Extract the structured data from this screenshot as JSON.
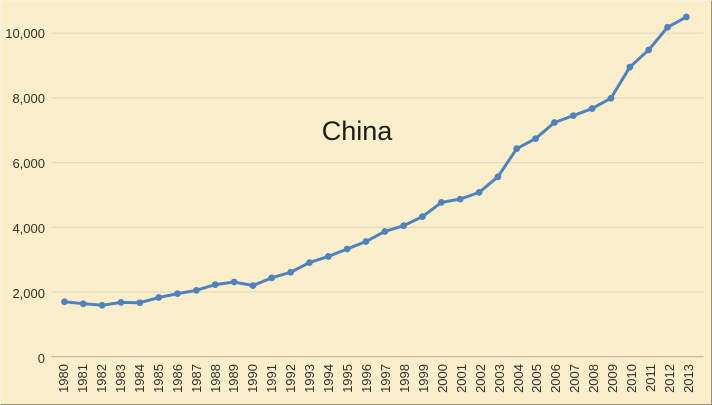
{
  "colors": {
    "background": "#FBEFCB",
    "line": "#4F81BD",
    "marker": "#4F81BD",
    "gridline": "#DBD4C0",
    "axis_line": "#B3AC96",
    "tick_text": "#33302A",
    "title_text": "#1C1C1C",
    "border_light": "#F8F3DF",
    "border_dark": "#97917D"
  },
  "chart_data": {
    "type": "line",
    "title": "China",
    "xlabel": "",
    "ylabel": "",
    "legend": "none",
    "grid": "horizontal",
    "marker_shape": "circle",
    "x": [
      "1980",
      "1981",
      "1982",
      "1983",
      "1984",
      "1985",
      "1986",
      "1987",
      "1988",
      "1989",
      "1990",
      "1991",
      "1992",
      "1993",
      "1994",
      "1995",
      "1996",
      "1997",
      "1998",
      "1999",
      "2000",
      "2001",
      "2002",
      "2003",
      "2004",
      "2005",
      "2006",
      "2007",
      "2008",
      "2009",
      "2010",
      "2011",
      "2012",
      "2013"
    ],
    "series": [
      {
        "name": "China",
        "values": [
          1700,
          1640,
          1590,
          1680,
          1670,
          1830,
          1950,
          2050,
          2230,
          2310,
          2200,
          2440,
          2610,
          2910,
          3100,
          3330,
          3560,
          3870,
          4050,
          4330,
          4770,
          4870,
          5080,
          5560,
          6430,
          6740,
          7240,
          7450,
          7670,
          7990,
          8950,
          9480,
          10180,
          10500
        ]
      }
    ],
    "ylim": [
      0,
      11000
    ],
    "y_ticks": [
      0,
      2000,
      4000,
      6000,
      8000,
      10000
    ],
    "y_tick_labels": [
      "0",
      "2,000",
      "4,000",
      "6,000",
      "8,000",
      "10,000"
    ]
  }
}
